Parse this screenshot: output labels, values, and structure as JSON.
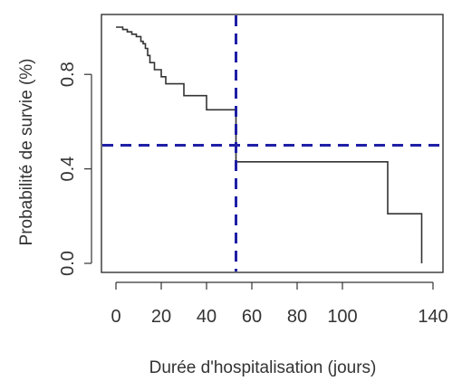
{
  "chart_data": {
    "type": "line",
    "xlabel": "Durée d'hospitalisation (jours)",
    "ylabel": "Probabilité de survie (%)",
    "xlim": [
      0,
      140
    ],
    "ylim": [
      0,
      1
    ],
    "x_ticks": [
      0,
      20,
      40,
      60,
      80,
      100,
      140
    ],
    "y_ticks": [
      0.0,
      0.4,
      0.8
    ],
    "y_tick_labels": [
      "0.0",
      "0.4",
      "0.8"
    ],
    "step_curve": {
      "x": [
        0,
        2,
        3,
        5,
        7,
        9,
        11,
        12,
        13,
        14,
        15,
        17,
        20,
        22,
        30,
        40,
        53,
        53,
        120,
        120,
        135,
        135
      ],
      "y": [
        1.0,
        1.0,
        0.99,
        0.98,
        0.97,
        0.96,
        0.94,
        0.93,
        0.91,
        0.88,
        0.85,
        0.82,
        0.79,
        0.76,
        0.71,
        0.65,
        0.65,
        0.43,
        0.43,
        0.21,
        0.21,
        0.0
      ]
    },
    "reference_lines": {
      "horizontal_y": 0.5,
      "vertical_x": 53,
      "color": "#1f1fa6",
      "style": "dashed"
    },
    "grid": false
  }
}
